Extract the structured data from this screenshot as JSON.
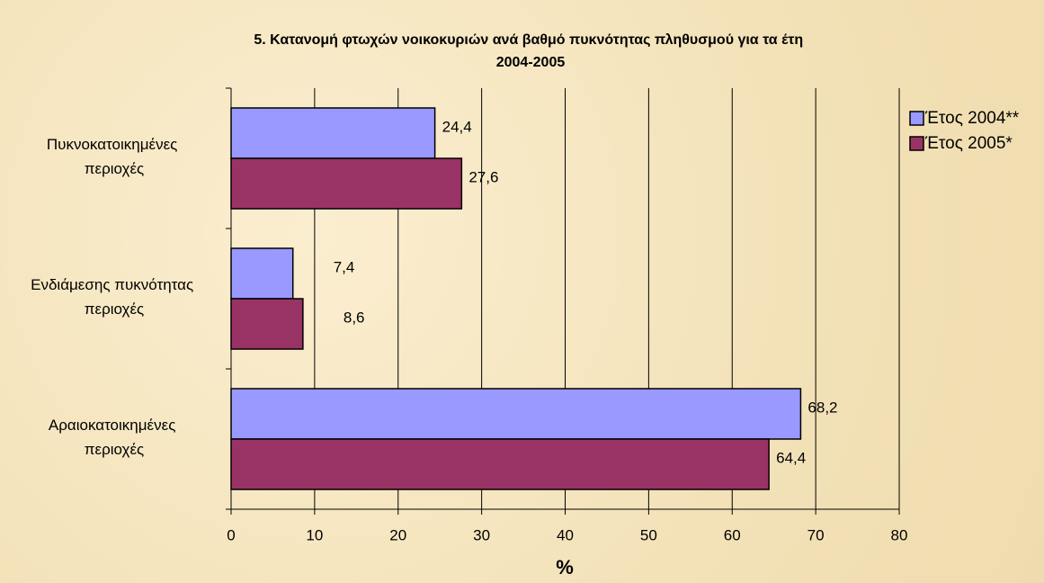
{
  "chart_data": {
    "type": "hbar",
    "title": "5. Κατανομή φτωχών νοικοκυριών ανά βαθμό πυκνότητας πληθυσμού για τα έτη 2004-2005",
    "categories": [
      "Πυκνοκατοικημένες περιοχές",
      "Ενδιάμεσης πυκνότητας περιοχές",
      "Αραιοκατοικημένες περιοχές"
    ],
    "series": [
      {
        "name": "Έτος 2004**",
        "color": "#9999ff",
        "values": [
          24.4,
          7.4,
          68.2
        ],
        "value_labels": [
          "24,4",
          "7,4",
          "68,2"
        ]
      },
      {
        "name": "Έτος 2005*",
        "color": "#993366",
        "values": [
          27.6,
          8.6,
          64.4
        ],
        "value_labels": [
          "27,6",
          "8,6",
          "64,4"
        ]
      }
    ],
    "xlabel": "%",
    "xlim": [
      0,
      80
    ],
    "xticks": [
      0,
      10,
      20,
      30,
      40,
      50,
      60,
      70,
      80
    ],
    "grid": true,
    "legend": "right"
  }
}
